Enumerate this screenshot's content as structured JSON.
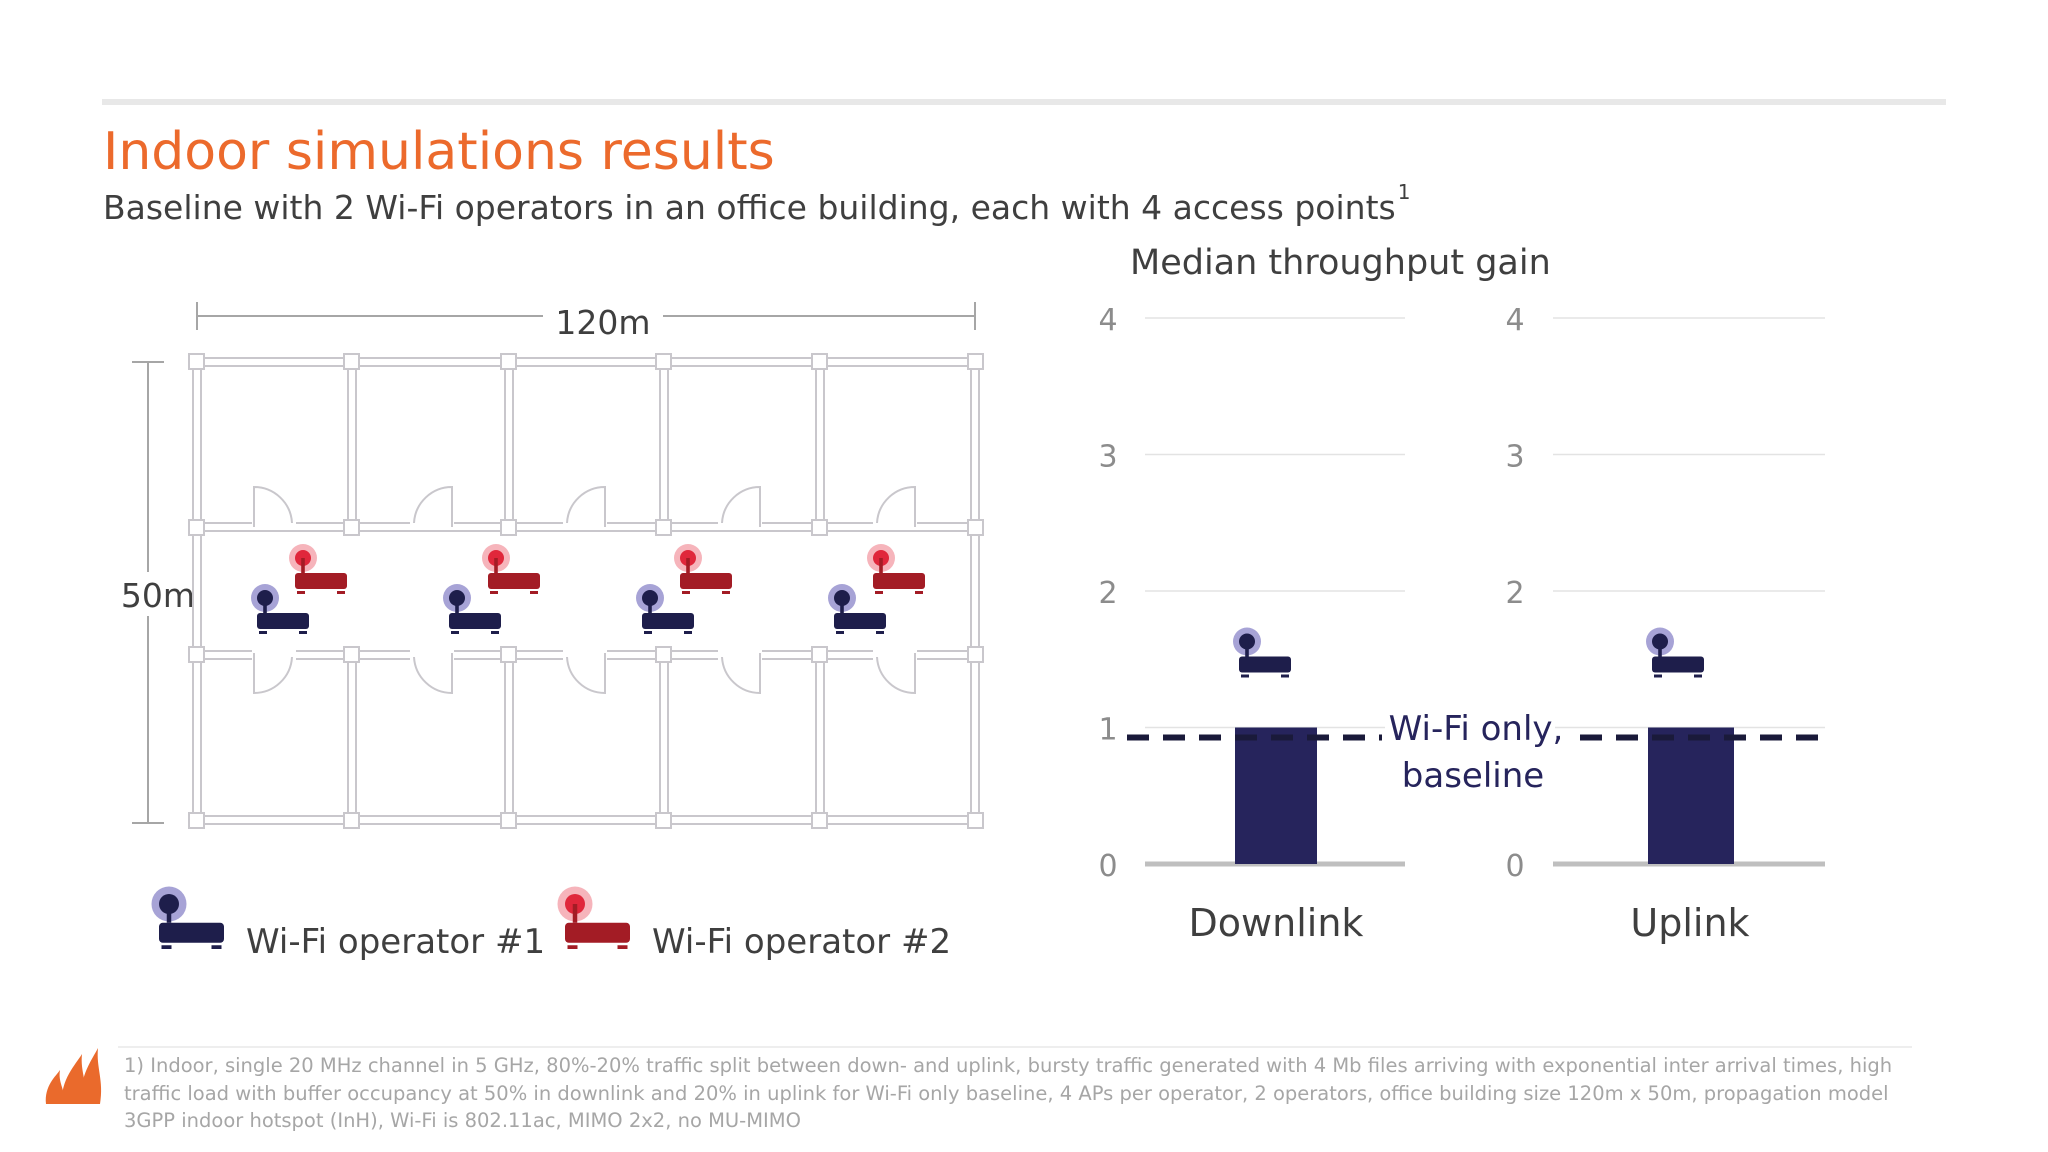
{
  "slide": {
    "title": "Indoor simulations results",
    "subtitle": "Baseline with 2 Wi-Fi operators in an office building, each with 4 access points",
    "subtitle_ref": "1",
    "footnote": "1) Indoor, single 20 MHz channel in 5 GHz, 80%-20% traffic split between down- and uplink, bursty traffic generated with 4 Mb files arriving with exponential inter arrival times, high traffic load with buffer occupancy at 50% in downlink and 20% in uplink for Wi-Fi only baseline, 4 APs per operator, 2 operators, office building size 120m x 50m, propagation model 3GPP indoor hotspot (InH), Wi-Fi is 802.11ac, MIMO 2x2,  no MU-MIMO",
    "logo": "flame-logo"
  },
  "floorplan": {
    "width_label": "120m",
    "height_label": "50m",
    "legend": [
      {
        "label": "Wi-Fi operator #1",
        "color": "#1e1e4b",
        "icon": "access-point-icon"
      },
      {
        "label": "Wi-Fi operator #2",
        "color": "#a31c25",
        "icon": "access-point-icon"
      }
    ]
  },
  "chart_data": {
    "type": "bar",
    "title": "Median throughput gain",
    "panels": [
      {
        "category": "Downlink",
        "series": "Wi-Fi operator #1",
        "value": 1.0
      },
      {
        "category": "Uplink",
        "series": "Wi-Fi operator #1",
        "value": 1.0
      }
    ],
    "ylim": [
      0,
      4
    ],
    "yticks": [
      "0",
      "1",
      "2",
      "3",
      "4"
    ],
    "reference_line": {
      "value": 1,
      "style": "dashed",
      "label_line1": "Wi-Fi only,",
      "label_line2": "baseline"
    },
    "grid": true,
    "bar_color": "#26245c"
  }
}
